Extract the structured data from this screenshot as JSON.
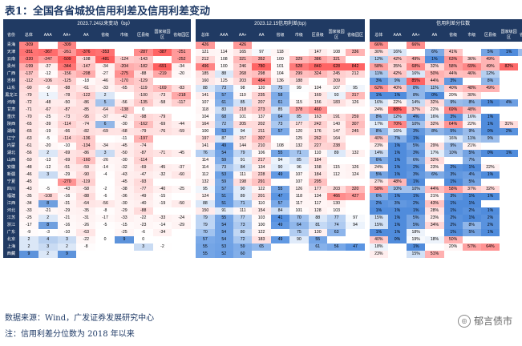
{
  "title": "表1：全国各省城投信用利差及信用利差变动",
  "group_headers": [
    "2023.7.24以来变动（bp）",
    "2023.12.15信用利差(bp)",
    "信用利差分位数"
  ],
  "province_header": "省份",
  "col_headers": [
    "总体",
    "AAA",
    "AA+",
    "AA",
    "省级",
    "市级",
    "区县级",
    "国家级园区",
    "省级园区"
  ],
  "rows": [
    {
      "p": "青海",
      "v": [
        "-309",
        "",
        "-309",
        "",
        "",
        "",
        "",
        "",
        ""
      ]
    },
    {
      "p": "天津",
      "v": [
        "-351",
        "-367",
        "-261",
        "-376",
        "-353",
        "",
        "-287",
        "-387",
        "-251"
      ]
    },
    {
      "p": "云南",
      "v": [
        "-320",
        "-247",
        "-509",
        "-108",
        "-481",
        "-124",
        "-143",
        "",
        "-252"
      ]
    },
    {
      "p": "贵州",
      "v": [
        "-199",
        "-37",
        "-344",
        "-147",
        "-34",
        "-204",
        "-182",
        "-691",
        "-34"
      ]
    },
    {
      "p": "广西",
      "v": [
        "-137",
        "-12",
        "-156",
        "-208",
        "-27",
        "-275",
        "-88",
        "-219",
        "-20"
      ]
    },
    {
      "p": "吉林",
      "v": [
        "-112",
        "-106",
        "-125",
        "-18",
        "-46",
        "-170",
        "-129",
        "",
        " "
      ]
    },
    {
      "p": "山东",
      "v": [
        "-90",
        "-9",
        "-88",
        "-61",
        "-33",
        "-65",
        "-119",
        "-169",
        "-83"
      ]
    },
    {
      "p": "黑龙江",
      "v": [
        "-79",
        "1",
        "-78",
        "-122",
        "2",
        "",
        "-100",
        "-73",
        "-218"
      ]
    },
    {
      "p": "河南",
      "v": [
        "-72",
        "-48",
        "-50",
        "-86",
        "5",
        "-56",
        "-135",
        "-58",
        "-117"
      ]
    },
    {
      "p": "甘肃",
      "v": [
        "-71",
        "-67",
        "-87",
        "-85",
        "-64",
        "-138",
        "0",
        "",
        ""
      ]
    },
    {
      "p": "重庆",
      "v": [
        "-70",
        "-25",
        "-73",
        "-95",
        "-37",
        "-42",
        "-98",
        "-79",
        ""
      ]
    },
    {
      "p": "陕西",
      "v": [
        "-65",
        "-39",
        "-114",
        "-74",
        "6",
        "-30",
        "-162",
        "-69",
        "-44"
      ]
    },
    {
      "p": "湖南",
      "v": [
        "-65",
        "-19",
        "-66",
        "-82",
        "-69",
        "-68",
        "-79",
        "-76",
        "-59"
      ]
    },
    {
      "p": "辽宁",
      "v": [
        "-63",
        "-5",
        "-114",
        "-136",
        "",
        "-11",
        "-197",
        "",
        ""
      ]
    },
    {
      "p": "内蒙",
      "v": [
        "-61",
        "-20",
        "-10",
        "-134",
        "-34",
        "-45",
        "-74",
        "",
        ""
      ]
    },
    {
      "p": "湖北",
      "v": [
        "-56",
        "2",
        "-69",
        "-86",
        "3",
        "-50",
        "-87",
        "-71",
        "-45"
      ]
    },
    {
      "p": "山西",
      "v": [
        "-50",
        "-13",
        "-69",
        "-160",
        "-26",
        "-30",
        "-114",
        "",
        ""
      ]
    },
    {
      "p": "安徽",
      "v": [
        "-48",
        "-12",
        "-51",
        "-59",
        "-14",
        "-32",
        "-69",
        "-45",
        "-37"
      ]
    },
    {
      "p": "新疆",
      "v": [
        "-46",
        "3",
        "-29",
        "-90",
        "-4",
        "-43",
        "-47",
        "-32",
        "-60"
      ]
    },
    {
      "p": "宁夏",
      "v": [
        "-45",
        "",
        "-270",
        "-119",
        "",
        "-45",
        "-93",
        "",
        ""
      ]
    },
    {
      "p": "四川",
      "v": [
        "-43",
        "-5",
        "-43",
        "-58",
        "-2",
        "-38",
        "-77",
        "-40",
        "-25"
      ]
    },
    {
      "p": "福建",
      "v": [
        "-35",
        "-108",
        "-16",
        "-88",
        "-6",
        "-36",
        "-49",
        "-15",
        ""
      ]
    },
    {
      "p": "江西",
      "v": [
        "-34",
        "8",
        "-31",
        "-64",
        "-56",
        "-30",
        "-40",
        "-19",
        "-50"
      ]
    },
    {
      "p": "河北",
      "v": [
        "-33",
        "-21",
        "-29",
        "-35",
        "-8",
        "-29",
        "-88",
        "",
        ""
      ]
    },
    {
      "p": "江苏",
      "v": [
        "-25",
        "2",
        "-21",
        "-31",
        "-17",
        "-33",
        "-22",
        "-33",
        "-24"
      ]
    },
    {
      "p": "浙江",
      "v": [
        "-17",
        "8",
        "-16",
        "-26",
        "-5",
        "-15",
        "-23",
        "-14",
        "-29"
      ]
    },
    {
      "p": "广东",
      "v": [
        "-9",
        "-3",
        "-10",
        "-63",
        "",
        "-25",
        "-6",
        "-34",
        ""
      ]
    },
    {
      "p": "北京",
      "v": [
        "2",
        "4",
        "3",
        "-22",
        "0",
        "9",
        "0",
        "",
        ""
      ]
    },
    {
      "p": "上海",
      "v": [
        "2",
        "3",
        "2",
        "-8",
        "",
        "",
        "3",
        "-2",
        ""
      ]
    },
    {
      "p": "西藏",
      "v": [
        "9",
        "2",
        "9",
        "",
        "",
        "",
        "",
        "",
        ""
      ]
    }
  ],
  "spreads": [
    [
      "426",
      "",
      "426",
      "",
      "",
      "",
      "",
      "",
      ""
    ],
    [
      "121",
      "114",
      "165",
      "97",
      "118",
      "",
      "147",
      "108",
      "336"
    ],
    [
      "212",
      "108",
      "321",
      "352",
      "100",
      "329",
      "386",
      "321",
      ""
    ],
    [
      "496",
      "100",
      "246",
      "780",
      "101",
      "528",
      "840",
      "628",
      "842"
    ],
    [
      "185",
      "88",
      "268",
      "298",
      "104",
      "299",
      "324",
      "245",
      "212"
    ],
    [
      "160",
      "125",
      "203",
      "484",
      "136",
      "188",
      "",
      "209",
      ""
    ],
    [
      "88",
      "73",
      "98",
      "120",
      "75",
      "99",
      "104",
      "107",
      "95"
    ],
    [
      "141",
      "57",
      "110",
      "235",
      "58",
      "",
      "169",
      "93",
      "317"
    ],
    [
      "107",
      "61",
      "85",
      "207",
      "61",
      "115",
      "156",
      "183",
      "126"
    ],
    [
      "118",
      "83",
      "218",
      "273",
      "85",
      "378",
      "460",
      "",
      ""
    ],
    [
      "104",
      "68",
      "101",
      "137",
      "64",
      "85",
      "163",
      "191",
      "259"
    ],
    [
      "164",
      "72",
      "205",
      "202",
      "73",
      "177",
      "242",
      "140",
      "307"
    ],
    [
      "100",
      "53",
      "94",
      "211",
      "57",
      "120",
      "176",
      "147",
      "245"
    ],
    [
      "197",
      "87",
      "157",
      "307",
      "",
      "125",
      "262",
      "164",
      ""
    ],
    [
      "141",
      "49",
      "144",
      "210",
      "108",
      "132",
      "227",
      "238",
      ""
    ],
    [
      "76",
      "54",
      "79",
      "106",
      "55",
      "71",
      "110",
      "89",
      "132"
    ],
    [
      "114",
      "59",
      "91",
      "217",
      "94",
      "85",
      "184",
      "",
      ""
    ],
    [
      "114",
      "73",
      "84",
      "134",
      "90",
      "96",
      "158",
      "115",
      "126"
    ],
    [
      "112",
      "53",
      "111",
      "228",
      "49",
      "107",
      "184",
      "112",
      "124"
    ],
    [
      "132",
      "59",
      "198",
      "291",
      "",
      "107",
      "295",
      "",
      ""
    ],
    [
      "95",
      "57",
      "90",
      "122",
      "55",
      "126",
      "177",
      "203",
      "320"
    ],
    [
      "124",
      "51",
      "89",
      "201",
      "47",
      "118",
      "134",
      "466",
      "427"
    ],
    [
      "88",
      "51",
      "71",
      "110",
      "57",
      "117",
      "117",
      "130",
      ""
    ],
    [
      "150",
      "91",
      "111",
      "154",
      "84",
      "101",
      "128",
      "103",
      ""
    ],
    [
      "79",
      "55",
      "77",
      "103",
      "41",
      "70",
      "88",
      "77",
      "97"
    ],
    [
      "79",
      "54",
      "73",
      "100",
      "49",
      "64",
      "81",
      "74",
      "94"
    ],
    [
      "70",
      "54",
      "80",
      "122",
      "",
      "75",
      "130",
      "63",
      ""
    ],
    [
      "57",
      "54",
      "72",
      "183",
      "49",
      "90",
      "55",
      "",
      ""
    ],
    [
      "55",
      "53",
      "59",
      "65",
      "",
      "",
      "61",
      "56",
      "47"
    ],
    [
      "55",
      "52",
      "60",
      "",
      "",
      "",
      "",
      "",
      ""
    ]
  ],
  "pct": [
    [
      "66%",
      "",
      "66%",
      "",
      "",
      "",
      "",
      "",
      ""
    ],
    [
      "30%",
      "16%",
      "",
      "6%",
      "41%",
      "",
      "5%",
      "1%",
      "9%"
    ],
    [
      "12%",
      "42%",
      "49%",
      "1%",
      "63%",
      "36%",
      "49%",
      "",
      ""
    ],
    [
      "58%",
      "35%",
      "68%",
      "32%",
      "58%",
      "69%",
      "49%",
      "82%",
      ""
    ],
    [
      "11%",
      "42%",
      "16%",
      "50%",
      "44%",
      "46%",
      "12%",
      "",
      ""
    ],
    [
      "3%",
      "9%",
      "85%",
      "44%",
      "3%",
      "",
      "8%",
      "",
      ""
    ],
    [
      "62%",
      "40%",
      "8%",
      "11%",
      "40%",
      "48%",
      "49%",
      "",
      ""
    ],
    [
      "1%",
      "1%",
      "8%",
      "0%",
      "20%",
      "30%",
      "",
      "",
      ""
    ],
    [
      "16%",
      "22%",
      "14%",
      "32%",
      "9%",
      "8%",
      "1%",
      "4%",
      ""
    ],
    [
      "24%",
      "88%",
      "37%",
      "22%",
      "69%",
      "48%",
      "",
      "",
      ""
    ],
    [
      "8%",
      "12%",
      "4%",
      "16%",
      "3%",
      "16%",
      "1%",
      "",
      ""
    ],
    [
      "17%",
      "70%",
      "10%",
      "32%",
      "64%",
      "22%",
      "1%",
      "31%",
      ""
    ],
    [
      "8%",
      "16%",
      "3%",
      "8%",
      "5%",
      "9%",
      "0%",
      "2%",
      ""
    ],
    [
      "40%",
      "7%",
      "1%",
      "",
      "16%",
      "11%",
      "9%",
      "",
      ""
    ],
    [
      "23%",
      "1%",
      "5%",
      "29%",
      "9%",
      "21%",
      "",
      "",
      ""
    ],
    [
      "14%",
      "1%",
      "3%",
      "17%",
      "10%",
      "5%",
      "0%",
      "1%",
      ""
    ],
    [
      "6%",
      "1%",
      "6%",
      "32%",
      "",
      "7%",
      "",
      "",
      ""
    ],
    [
      "24%",
      "1%",
      "2%",
      "23%",
      "2%",
      "1%",
      "22%",
      "",
      ""
    ],
    [
      "5%",
      "1%",
      "3%",
      "6%",
      "3%",
      "4%",
      "1%",
      "",
      ""
    ],
    [
      "27%",
      "48%",
      "1%",
      "",
      "1%",
      "5%",
      "",
      "",
      ""
    ],
    [
      "58%",
      "10%",
      "10%",
      "44%",
      "58%",
      "37%",
      "32%",
      "",
      ""
    ],
    [
      "6%",
      "1%",
      "1%",
      "21%",
      "3%",
      "1%",
      "1%",
      "",
      ""
    ],
    [
      "2%",
      "3%",
      "2%",
      "43%",
      "1%",
      "1%",
      "",
      "",
      ""
    ],
    [
      "1%",
      "1%",
      "1%",
      "28%",
      "1%",
      "2%",
      "1%",
      "",
      ""
    ],
    [
      "15%",
      "1%",
      "5%",
      "23%",
      "2%",
      "1%",
      "2%",
      "",
      ""
    ],
    [
      "15%",
      "1%",
      "5%",
      "34%",
      "2%",
      "8%",
      "2%",
      "",
      ""
    ],
    [
      "1%",
      "1%",
      "18%",
      "",
      "1%",
      "5%",
      "1%",
      "",
      ""
    ],
    [
      "40%",
      "0%",
      "19%",
      "18%",
      "50%",
      "",
      "",
      "",
      ""
    ],
    [
      "18%",
      "",
      "1%",
      "",
      "20%",
      "57%",
      "64%",
      "",
      ""
    ],
    [
      "23%",
      "",
      "15%",
      "51%",
      "",
      "",
      "",
      "",
      ""
    ]
  ],
  "footer": {
    "source": "数据来源：Wind，广发证券发展研究中心",
    "note": "注：信用利差分位数为 2018 年以来"
  },
  "watermark": "郁言债市"
}
